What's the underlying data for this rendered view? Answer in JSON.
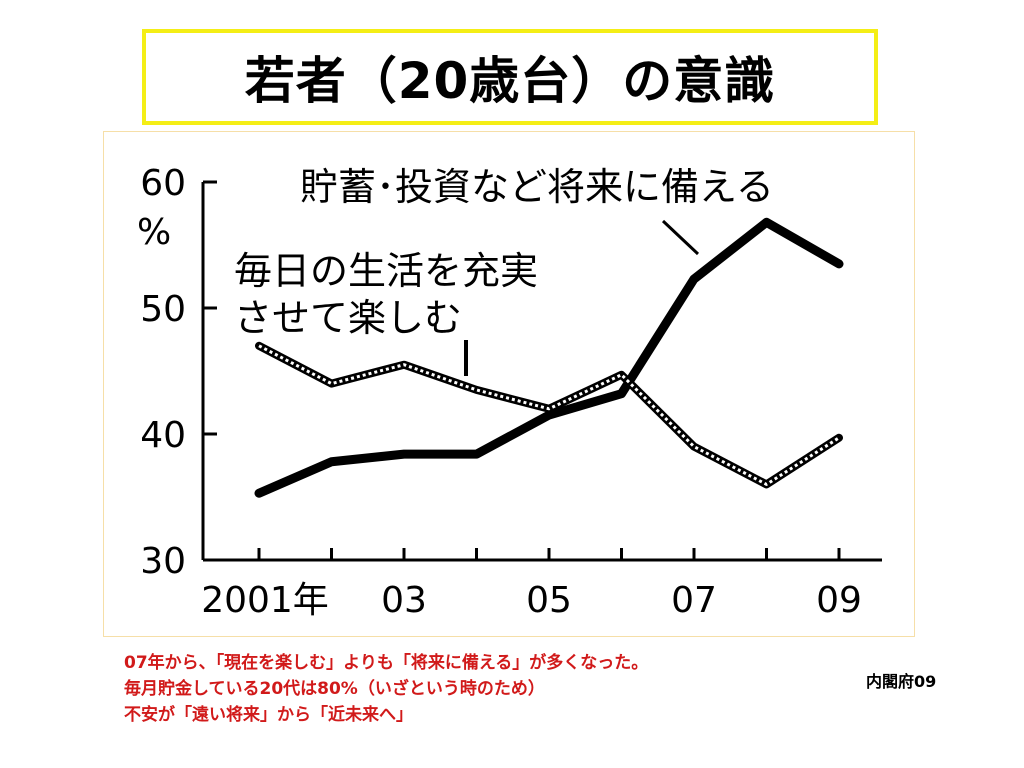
{
  "slide": {
    "title": "若者（20歳台）の意識",
    "caption_lines": [
      "07年から、「現在を楽しむ」よりも「将来に備える」が多くなった。",
      "毎月貯金している20代は80%（いざという時のため）",
      "不安が「遠い将来」から「近未来へ」"
    ],
    "source": "内閣府09"
  },
  "chart_data": {
    "type": "line",
    "ylabel": "%",
    "ylim": [
      30,
      60
    ],
    "y_ticks": [
      "60",
      "50",
      "40",
      "30"
    ],
    "x": [
      2001,
      2002,
      2003,
      2004,
      2005,
      2006,
      2007,
      2008,
      2009
    ],
    "x_tick_labels": [
      {
        "x": 2001,
        "label": "2001年"
      },
      {
        "x": 2003,
        "label": "03"
      },
      {
        "x": 2005,
        "label": "05"
      },
      {
        "x": 2007,
        "label": "07"
      },
      {
        "x": 2009,
        "label": "09"
      }
    ],
    "series": [
      {
        "name": "貯蓄･投資など将来に備える",
        "style": "solid",
        "color": "#000000",
        "values": [
          35.3,
          37.8,
          38.4,
          38.4,
          41.5,
          43.2,
          52.3,
          56.8,
          53.5
        ]
      },
      {
        "name": "毎日の生活を充実させて楽しむ",
        "style": "dotted-outline",
        "color": "#000000",
        "values": [
          47.0,
          44.0,
          45.5,
          43.5,
          42.0,
          44.7,
          39.0,
          36.0,
          39.7
        ]
      }
    ],
    "annotations": [
      {
        "series": 0,
        "lines": [
          "貯蓄･投資など将来に備える"
        ]
      },
      {
        "series": 1,
        "lines": [
          "毎日の生活を充実",
          "させて楽しむ"
        ]
      }
    ],
    "grid": false,
    "legend": "none"
  }
}
